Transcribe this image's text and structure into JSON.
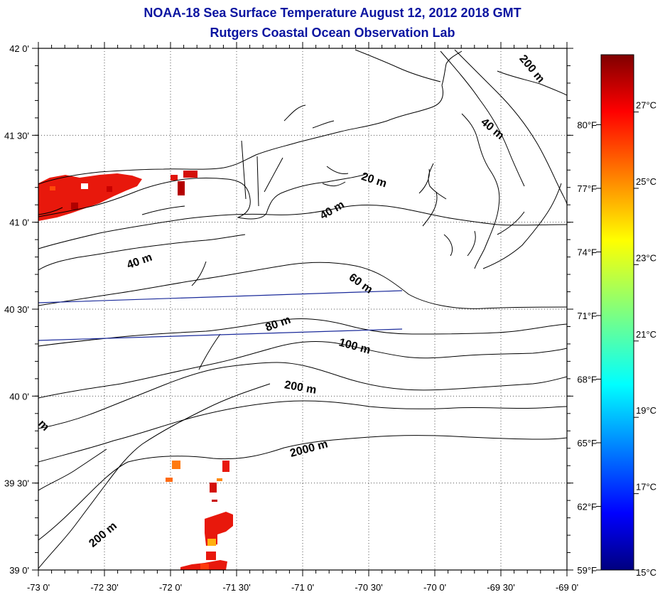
{
  "header": {
    "title": "NOAA-18 Sea Surface Temperature August 12, 2012 2018 GMT",
    "subtitle": "Rutgers Coastal Ocean Observation Lab"
  },
  "map": {
    "lon_range": [
      -73,
      -69
    ],
    "lat_range": [
      39,
      42
    ],
    "lon_ticks": [
      "-73 0'",
      "-72 30'",
      "-72 0'",
      "-71 30'",
      "-71 0'",
      "-70 30'",
      "-70 0'",
      "-69 30'",
      "-69 0'"
    ],
    "lat_ticks": [
      "39 0'",
      "39 30'",
      "40 0'",
      "40 30'",
      "41 0'",
      "41 30'",
      "42 0'"
    ],
    "contour_labels": [
      "200 m",
      "40 m",
      "20 m",
      "40 m",
      "40 m",
      "60 m",
      "80 m",
      "100 m",
      "200 m",
      "2000 m",
      "200 m",
      "m"
    ],
    "colors": {
      "land_line": "#000000",
      "track_line": "#1a2a9a",
      "grid": "#555555"
    }
  },
  "colorbar": {
    "fahrenheit_labels": [
      "80°F",
      "77°F",
      "74°F",
      "71°F",
      "68°F",
      "65°F",
      "62°F",
      "59°F"
    ],
    "celsius_labels": [
      "27°C",
      "25°C",
      "23°C",
      "21°C",
      "19°C",
      "17°C",
      "15°C"
    ],
    "range_c": [
      15,
      28.5
    ]
  }
}
